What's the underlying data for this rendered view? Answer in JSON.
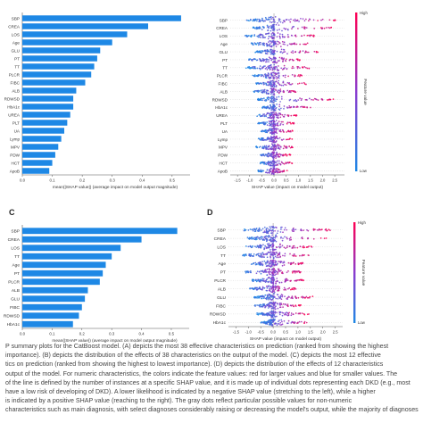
{
  "panel_letters": [
    "C",
    "D"
  ],
  "caption_lines": [
    "P summary plots for the  CatBoost model. (A) depicts the most 38 effective characteristics on prediction (ranked from showing the highest",
    "importance). (B) depicts the distribution of the effects of 38 characteristics on the output of the model. (C) depicts the most 12 effective",
    "tics on prediction (ranked from showing the highest to lowest importance). (D) depicts the distribution of the effects of 12 characteristics",
    "output of the model. For numeric characteristics, the colors indicate the feature values: red for larger values and blue for smaller values. The",
    "of the line is defined by the number of instances at a specific SHAP value, and it is made up of individual dots representing each DKD (e.g., most",
    "have a low risk of developing of DKD). A lower likelihood is indicated by a negative SHAP value (stretching to the left), while a higher",
    "is indicated by a positive SHAP value (reaching to the right). The gray dots reflect particular possible values for non-numeric",
    "characteristics such as main diagnosis, with select diagnoses considerably raising or decreasing the model's output, while the majority of diagnoses"
  ],
  "colors": {
    "bar": "#1e88e5",
    "high": "#ff0052",
    "low": "#1e88e5",
    "mid": "#8a3ccf",
    "text": "#333333",
    "axis": "#555555"
  },
  "chart_data": [
    {
      "type": "bar",
      "categories": [
        "SBP",
        "CREA",
        "LOS",
        "Age",
        "GLU",
        "PT",
        "TT",
        "PLCR",
        "FIBC",
        "ALB",
        "RDWSD",
        "HbA1c",
        "UREA",
        "PLT",
        "UA",
        "Lymp",
        "MPV",
        "PDW",
        "HCT",
        "ApoB"
      ],
      "values": [
        0.53,
        0.42,
        0.35,
        0.3,
        0.26,
        0.25,
        0.24,
        0.23,
        0.21,
        0.18,
        0.17,
        0.17,
        0.16,
        0.15,
        0.14,
        0.13,
        0.12,
        0.11,
        0.1,
        0.09
      ],
      "xlim": [
        0,
        0.56
      ],
      "xticks": [
        "0.0",
        "0.1",
        "0.2",
        "0.3",
        "0.4",
        "0.5"
      ],
      "xlabel": "mean(|SHAP value|) (average impact on model output magnitude)"
    },
    {
      "type": "scatter",
      "features": [
        "SBP",
        "CREA",
        "LOS",
        "Age",
        "GLU",
        "PT",
        "TT",
        "PLCR",
        "FIBC",
        "ALB",
        "RDWSD",
        "HbA1c",
        "UREA",
        "PLT",
        "UA",
        "Lymp",
        "MPV",
        "PDW",
        "HCT",
        "ApoB"
      ],
      "spread": [
        [
          -1.2,
          2.7
        ],
        [
          -1.0,
          2.5
        ],
        [
          -1.3,
          1.8
        ],
        [
          -1.0,
          1.5
        ],
        [
          -0.8,
          1.9
        ],
        [
          -1.1,
          1.2
        ],
        [
          -1.2,
          1.6
        ],
        [
          -0.9,
          1.3
        ],
        [
          -0.8,
          1.4
        ],
        [
          -0.9,
          1.1
        ],
        [
          -0.7,
          2.6
        ],
        [
          -0.5,
          1.6
        ],
        [
          -0.8,
          1.0
        ],
        [
          -0.7,
          0.9
        ],
        [
          -0.6,
          0.8
        ],
        [
          -0.7,
          0.8
        ],
        [
          -0.8,
          0.9
        ],
        [
          -0.6,
          0.7
        ],
        [
          -0.6,
          0.8
        ],
        [
          -0.7,
          0.6
        ]
      ],
      "xlim": [
        -1.8,
        2.9
      ],
      "xticks": [
        "-1.5",
        "-1.0",
        "-0.5",
        "0.0",
        "0.5",
        "1.0",
        "1.5",
        "2.0",
        "2.5"
      ],
      "xlabel": "SHAP value (impact on model output)",
      "colorbar": {
        "label": "Feature value",
        "high": "High",
        "low": "Low"
      }
    },
    {
      "type": "bar",
      "categories": [
        "SBP",
        "CREA",
        "LOS",
        "TT",
        "Age",
        "PT",
        "PLCR",
        "ALB",
        "GLU",
        "FIBC",
        "RDWSD",
        "HbA1c"
      ],
      "values": [
        0.52,
        0.4,
        0.33,
        0.3,
        0.28,
        0.27,
        0.26,
        0.22,
        0.21,
        0.2,
        0.19,
        0.17
      ],
      "xlim": [
        0,
        0.56
      ],
      "xticks": [
        "0.0",
        "0.1",
        "0.2",
        "0.3",
        "0.4",
        "0.5"
      ],
      "xlabel": "mean(|SHAP value|) (average impact on model output magnitude)"
    },
    {
      "type": "scatter",
      "features": [
        "SBP",
        "CREA",
        "LOS",
        "TT",
        "Age",
        "PT",
        "PLCR",
        "ALB",
        "GLU",
        "FIBC",
        "RDWSD",
        "HbA1c"
      ],
      "spread": [
        [
          -1.3,
          2.6
        ],
        [
          -1.1,
          2.3
        ],
        [
          -1.2,
          1.7
        ],
        [
          -1.3,
          1.6
        ],
        [
          -1.0,
          1.4
        ],
        [
          -1.2,
          1.2
        ],
        [
          -0.9,
          1.3
        ],
        [
          -1.0,
          1.0
        ],
        [
          -0.8,
          1.7
        ],
        [
          -0.8,
          1.2
        ],
        [
          -0.7,
          1.5
        ],
        [
          -0.5,
          1.5
        ]
      ],
      "xlim": [
        -1.8,
        2.8
      ],
      "xticks": [
        "-1.5",
        "-1.0",
        "-0.5",
        "0.0",
        "0.5",
        "1.0",
        "1.5",
        "2.0",
        "2.5"
      ],
      "xlabel": "SHAP value (impact on model output)",
      "colorbar": {
        "label": "Feature value",
        "high": "High",
        "low": "Low"
      }
    }
  ]
}
